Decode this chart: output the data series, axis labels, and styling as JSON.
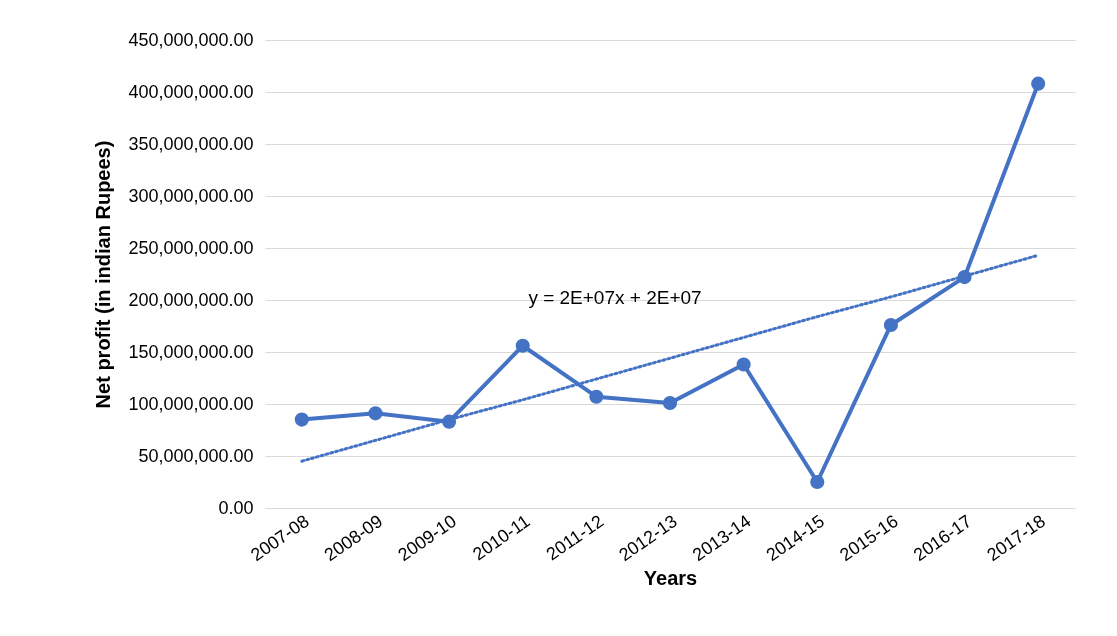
{
  "chart_data": {
    "type": "line",
    "xlabel": "Years",
    "ylabel": "Net profit (in indian Rupees)",
    "categories": [
      "2007-08",
      "2008-09",
      "2009-10",
      "2010-11",
      "2011-12",
      "2012-13",
      "2013-14",
      "2014-15",
      "2015-16",
      "2016-17",
      "2017-18"
    ],
    "series": [
      {
        "color": "#4472c4",
        "marker": "circle",
        "line_style": "solid",
        "values": [
          85000000,
          91000000,
          83000000,
          156000000,
          107000000,
          101000000,
          138000000,
          25000000,
          176000000,
          222000000,
          408000000
        ]
      },
      {
        "color": "#4472c4",
        "marker": "none",
        "line_style": "dotted",
        "values": [
          45000000,
          65000000,
          85000000,
          104000000,
          124000000,
          144000000,
          164000000,
          184000000,
          203000000,
          223000000,
          243000000
        ]
      }
    ],
    "annotations": [
      "y = 2E+07x + 2E+07"
    ],
    "ylim": [
      0,
      450000000
    ],
    "yticks": [
      {
        "value": 0,
        "label": "0.00"
      },
      {
        "value": 50000000,
        "label": "50,000,000.00"
      },
      {
        "value": 100000000,
        "label": "100,000,000.00"
      },
      {
        "value": 150000000,
        "label": "150,000,000.00"
      },
      {
        "value": 200000000,
        "label": "200,000,000.00"
      },
      {
        "value": 250000000,
        "label": "250,000,000.00"
      },
      {
        "value": 300000000,
        "label": "300,000,000.00"
      },
      {
        "value": 350000000,
        "label": "350,000,000.00"
      },
      {
        "value": 400000000,
        "label": "400,000,000.00"
      },
      {
        "value": 450000000,
        "label": "450,000,000.00"
      }
    ],
    "grid": "y"
  }
}
